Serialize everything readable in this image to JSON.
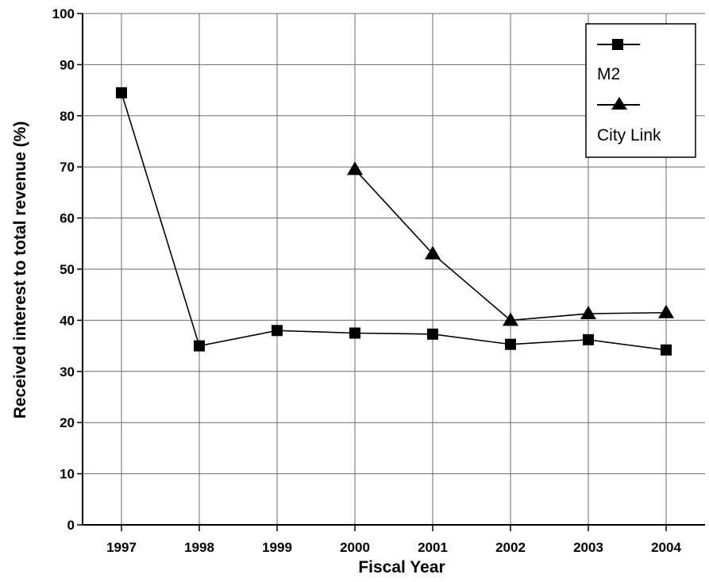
{
  "chart_data": {
    "type": "line",
    "title": "",
    "xlabel": "Fiscal Year",
    "ylabel": "Received interest to total revenue (%)",
    "categories": [
      "1997",
      "1998",
      "1999",
      "2000",
      "2001",
      "2002",
      "2003",
      "2004"
    ],
    "ylim": [
      0,
      100
    ],
    "yticks": [
      0,
      10,
      20,
      30,
      40,
      50,
      60,
      70,
      80,
      90,
      100
    ],
    "grid": true,
    "legend": "top-right",
    "series": [
      {
        "name": "M2",
        "marker": "square",
        "color": "#000000",
        "values": [
          84.5,
          35.0,
          38.0,
          37.5,
          37.3,
          35.3,
          36.2,
          34.2
        ]
      },
      {
        "name": "City Link",
        "marker": "triangle",
        "color": "#000000",
        "values": [
          null,
          null,
          null,
          69.5,
          53.0,
          40.0,
          41.3,
          41.5
        ]
      }
    ]
  }
}
